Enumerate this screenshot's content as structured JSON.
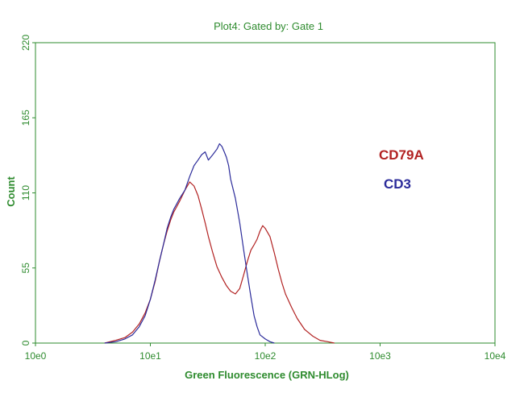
{
  "chart_data": {
    "type": "line",
    "title": "Plot4:  Gated by: Gate 1",
    "xlabel": "Green Fluorescence (GRN-HLog)",
    "ylabel": "Count",
    "x_scale": "log",
    "xlim": [
      1,
      10000
    ],
    "ylim": [
      0,
      220
    ],
    "x_ticks": [
      1,
      10,
      100,
      1000,
      10000
    ],
    "x_tick_labels": [
      "10e0",
      "10e1",
      "10e2",
      "10e3",
      "10e4"
    ],
    "y_ticks": [
      0,
      55,
      110,
      165,
      220
    ],
    "y_tick_labels": [
      "0",
      "55",
      "110",
      "165",
      "220"
    ],
    "grid": false,
    "legend_position": "right",
    "series": [
      {
        "name": "CD79A",
        "color": "#b22222",
        "x": [
          4,
          5,
          6,
          7,
          8,
          9,
          10,
          11,
          12,
          13,
          14,
          15,
          16,
          17,
          18,
          19,
          20,
          22,
          24,
          26,
          28,
          30,
          32,
          35,
          38,
          42,
          46,
          50,
          55,
          60,
          65,
          70,
          75,
          80,
          85,
          90,
          95,
          100,
          110,
          120,
          130,
          140,
          150,
          170,
          190,
          220,
          260,
          300,
          350,
          400
        ],
        "y": [
          0,
          2,
          4,
          8,
          14,
          22,
          32,
          45,
          60,
          72,
          82,
          90,
          96,
          100,
          104,
          108,
          112,
          118,
          115,
          108,
          98,
          88,
          78,
          66,
          56,
          48,
          42,
          38,
          36,
          40,
          50,
          60,
          68,
          72,
          76,
          82,
          86,
          84,
          78,
          66,
          54,
          44,
          36,
          26,
          18,
          10,
          5,
          2,
          1,
          0
        ]
      },
      {
        "name": "CD3",
        "color": "#2b2b9a",
        "x": [
          4,
          5,
          6,
          7,
          8,
          9,
          10,
          11,
          12,
          13,
          14,
          15,
          16,
          17,
          18,
          20,
          22,
          24,
          26,
          28,
          30,
          32,
          35,
          38,
          40,
          42,
          44,
          46,
          48,
          50,
          55,
          60,
          65,
          70,
          75,
          80,
          85,
          90,
          100,
          110,
          120
        ],
        "y": [
          0,
          1,
          3,
          6,
          12,
          20,
          32,
          46,
          60,
          72,
          84,
          92,
          98,
          102,
          106,
          112,
          122,
          130,
          134,
          138,
          140,
          134,
          138,
          142,
          146,
          144,
          140,
          136,
          130,
          120,
          106,
          88,
          68,
          50,
          34,
          20,
          12,
          6,
          3,
          1,
          0
        ]
      }
    ]
  }
}
